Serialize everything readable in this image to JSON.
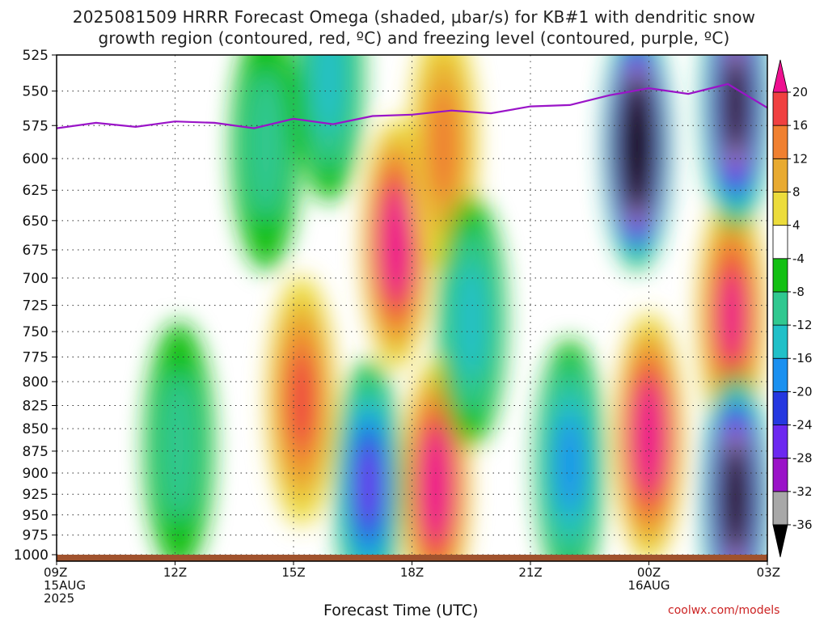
{
  "title_line1": "2025081509 HRRR Forecast Omega (shaded, μbar/s) for KB#1 with dendritic snow",
  "title_line2": "growth region (contoured, red, ºC) and freezing level (contoured, purple, ºC)",
  "credit": "coolwx.com/models",
  "chart_data": {
    "type": "heatmap",
    "title": "2025081509 HRRR Forecast Omega (shaded, μbar/s) for KB#1 with dendritic snow growth region (contoured, red, ºC) and freezing level (contoured, purple, ºC)",
    "xlabel": "Forecast Time (UTC)",
    "ylabel": "",
    "x_ticks": [
      {
        "hour": 0,
        "lines": [
          "09Z",
          "15AUG",
          "2025"
        ]
      },
      {
        "hour": 3,
        "lines": [
          "12Z"
        ]
      },
      {
        "hour": 6,
        "lines": [
          "15Z"
        ]
      },
      {
        "hour": 9,
        "lines": [
          "18Z"
        ]
      },
      {
        "hour": 12,
        "lines": [
          "21Z"
        ]
      },
      {
        "hour": 15,
        "lines": [
          "00Z",
          "16AUG"
        ]
      },
      {
        "hour": 18,
        "lines": [
          "03Z"
        ]
      }
    ],
    "xlim": [
      0,
      18
    ],
    "y_ticks": [
      525,
      550,
      575,
      600,
      625,
      650,
      675,
      700,
      725,
      750,
      775,
      800,
      825,
      850,
      875,
      900,
      925,
      950,
      975,
      1000
    ],
    "ylim": [
      1000,
      525
    ],
    "y_scale": "log",
    "grid": true,
    "colorbar": {
      "levels": [
        -36,
        -32,
        -28,
        -24,
        -20,
        -16,
        -12,
        -8,
        -4,
        4,
        8,
        12,
        16,
        20
      ],
      "colors": [
        "#000000",
        "#a8a8a8",
        "#9a12c8",
        "#6c28f0",
        "#2538e0",
        "#1a90f0",
        "#20c0c8",
        "#30c890",
        "#12c012",
        "#ffffff",
        "#ecdc3c",
        "#e8aa30",
        "#f08030",
        "#f04040",
        "#ee1090"
      ]
    },
    "freezing_level": {
      "hours": [
        0,
        1,
        2,
        3,
        4,
        5,
        6,
        7,
        8,
        9,
        10,
        11,
        12,
        13,
        14,
        15,
        16,
        17,
        18
      ],
      "pressure": [
        577,
        573,
        576,
        572,
        573,
        577,
        570,
        574,
        568,
        567,
        564,
        566,
        561,
        560,
        553,
        548,
        552,
        545,
        562
      ]
    },
    "omega_centers": [
      {
        "hour": 8.6,
        "pressure": 670,
        "value": 24
      },
      {
        "hour": 9.8,
        "pressure": 590,
        "value": 14
      },
      {
        "hour": 6.2,
        "pressure": 820,
        "value": 18
      },
      {
        "hour": 9.6,
        "pressure": 915,
        "value": 24
      },
      {
        "hour": 15.0,
        "pressure": 860,
        "value": 24
      },
      {
        "hour": 17.1,
        "pressure": 735,
        "value": 22
      },
      {
        "hour": 3.1,
        "pressure": 870,
        "value": -8
      },
      {
        "hour": 5.3,
        "pressure": 590,
        "value": -9
      },
      {
        "hour": 6.9,
        "pressure": 540,
        "value": -14
      },
      {
        "hour": 10.5,
        "pressure": 740,
        "value": -15
      },
      {
        "hour": 7.9,
        "pressure": 915,
        "value": -24
      },
      {
        "hour": 13.0,
        "pressure": 890,
        "value": -16
      },
      {
        "hour": 14.7,
        "pressure": 590,
        "value": -60
      },
      {
        "hour": 17.2,
        "pressure": 560,
        "value": -45
      },
      {
        "hour": 17.2,
        "pressure": 930,
        "value": -50
      }
    ]
  }
}
